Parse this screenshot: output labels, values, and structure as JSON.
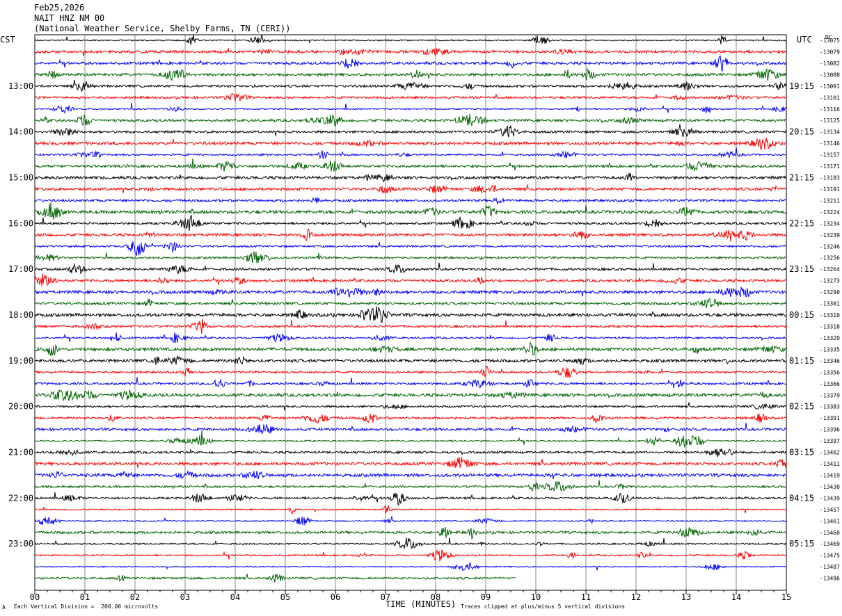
{
  "header": {
    "date": "Feb25,2026",
    "station": "NAIT HNZ NM 00",
    "location": "(National Weather Service, Shelby Farms, TN (CERI))"
  },
  "left_zone": "CST",
  "right_zone": "UTC",
  "gain_label": "DC",
  "footer": {
    "scale_note": "Each Vertical Division =  200.00 microvolts",
    "xlabel": "TIME (MINUTES)",
    "clip_note": "Traces clipped at plus/minus 5 vertical divisions",
    "corner_mark": "A"
  },
  "chart_data": {
    "type": "line",
    "title": "NAIT HNZ NM 00",
    "xlabel": "TIME (MINUTES)",
    "xlim": [
      0,
      15
    ],
    "x_tick_labels": [
      "00",
      "01",
      "02",
      "03",
      "04",
      "05",
      "06",
      "07",
      "08",
      "09",
      "10",
      "11",
      "12",
      "13",
      "14",
      "15"
    ],
    "grid": true,
    "trace_colors": [
      "#000000",
      "#ff0000",
      "#0000ff",
      "#006400"
    ],
    "left_hour_labels": [
      "13:00",
      "14:00",
      "15:00",
      "16:00",
      "17:00",
      "18:00",
      "19:00",
      "20:00",
      "21:00",
      "22:00",
      "23:00"
    ],
    "right_hour_labels": [
      "19:15",
      "20:15",
      "21:15",
      "22:15",
      "23:15",
      "00:15",
      "01:15",
      "02:15",
      "03:15",
      "04:15",
      "05:15"
    ],
    "trace_offsets": [
      -13075,
      -13079,
      -13082,
      -13088,
      -13091,
      -13101,
      -13116,
      -13125,
      -13134,
      -13146,
      -13157,
      -13171,
      -13183,
      -13191,
      -13211,
      -13224,
      -13234,
      -13239,
      -13246,
      -13256,
      -13264,
      -13273,
      -13290,
      -13301,
      -13310,
      -13318,
      -13329,
      -13335,
      -13346,
      -13356,
      -13366,
      -13379,
      -13383,
      -13391,
      -13396,
      -13397,
      -13402,
      -13411,
      -13419,
      -13430,
      -13439,
      -13457,
      -13461,
      -13460,
      -13469,
      -13475,
      -13487,
      -13496
    ],
    "trace_end_minutes": [
      15,
      15,
      15,
      15,
      15,
      15,
      15,
      15,
      15,
      15,
      15,
      15,
      15,
      15,
      15,
      15,
      15,
      15,
      15,
      15,
      15,
      15,
      15,
      15,
      15,
      15,
      15,
      15,
      15,
      15,
      15,
      15,
      15,
      15,
      15,
      15,
      15,
      15,
      15,
      15,
      15,
      15,
      15,
      15,
      15,
      15,
      15,
      9.6
    ],
    "scale_microvolts_per_division": 200.0,
    "clip_divisions": 5
  }
}
